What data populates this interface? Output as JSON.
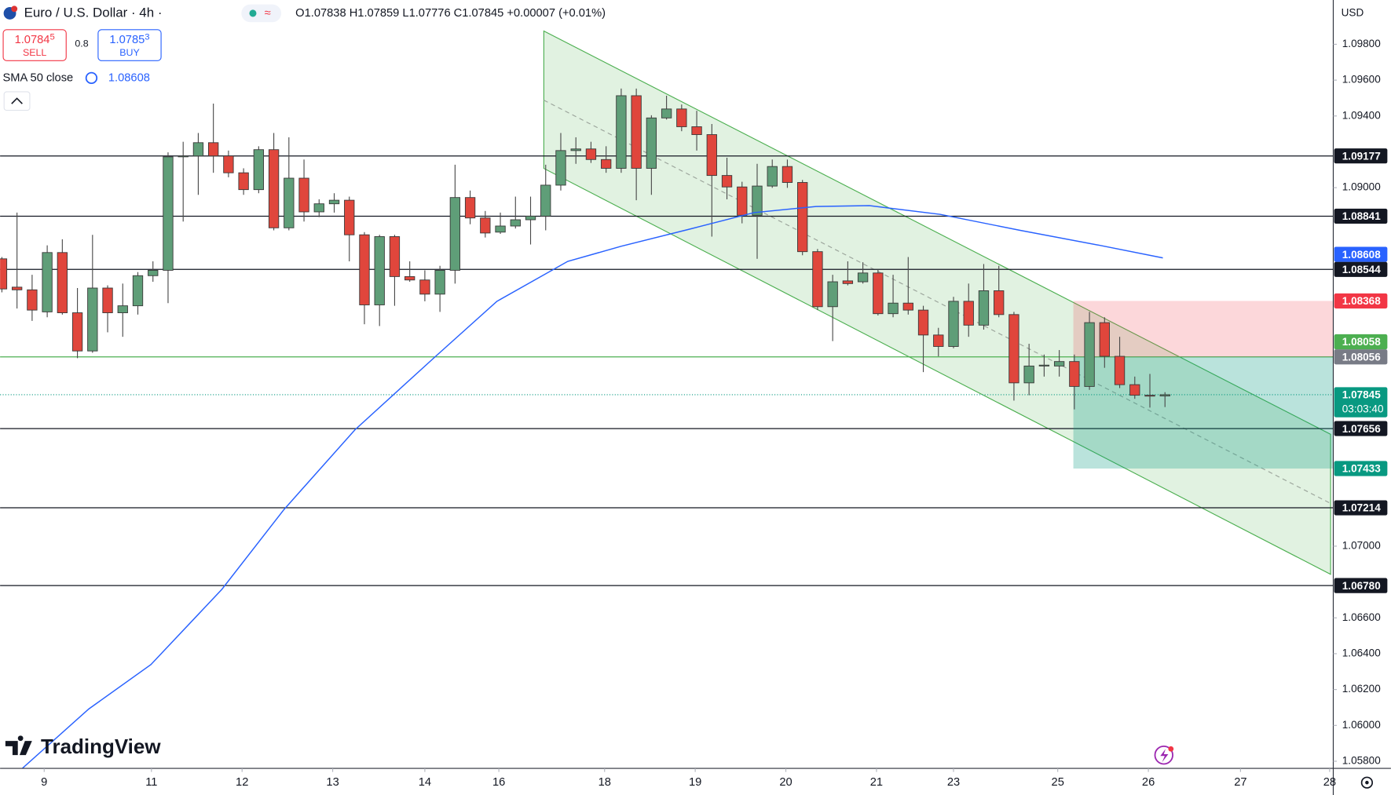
{
  "header": {
    "symbol": "Euro / U.S. Dollar · 4h ·",
    "ohlc": "O1.07838 H1.07859 L1.07776 C1.07845 +0.00007 (+0.01%)",
    "sell_price": "1.0784",
    "sell_pip": "5",
    "sell": "SELL",
    "spread": "0.8",
    "buy_price": "1.0785",
    "buy_pip": "3",
    "buy": "BUY",
    "indicator_value": "1.08608"
  },
  "logo": "TradingView",
  "chart_data": {
    "type": "candlestick",
    "currency": "USD",
    "up_color": "#5f9e78",
    "down_color": "#e0463c",
    "grid": false,
    "open": [
      1.08603,
      1.08445,
      1.0843,
      1.08307,
      1.08638,
      1.08302,
      1.08089,
      1.0844,
      1.08302,
      1.08341,
      1.08509,
      1.08539,
      1.09172,
      1.09177,
      1.09251,
      1.09177,
      1.09083,
      1.08989,
      1.09212,
      1.08776,
      1.09053,
      1.08865,
      1.0891,
      1.0893,
      1.08737,
      1.08346,
      1.08727,
      1.08504,
      1.08485,
      1.08406,
      1.08539,
      1.08945,
      1.08831,
      1.08752,
      1.08786,
      1.08821,
      1.08841,
      1.09014,
      1.09207,
      1.09216,
      1.09157,
      1.09108,
      1.09513,
      1.09108,
      1.09389,
      1.09439,
      1.0934,
      1.09296,
      1.09068,
      1.09004,
      1.08846,
      1.09009,
      1.09118,
      1.09029,
      1.08643,
      1.08336,
      1.0848,
      1.08475,
      1.08524,
      1.08297,
      1.08356,
      1.08317,
      1.08178,
      1.08114,
      1.08366,
      1.08233,
      1.08425,
      1.08292,
      1.07911,
      1.08005,
      1.08005,
      1.0803,
      1.07891,
      1.08247,
      1.08059,
      1.07901,
      1.07842,
      1.07838
    ],
    "high": [
      1.08613,
      1.08861,
      1.08514,
      1.08678,
      1.08712,
      1.0844,
      1.08737,
      1.08455,
      1.08465,
      1.08529,
      1.08589,
      1.09197,
      1.09256,
      1.09305,
      1.09469,
      1.09207,
      1.09108,
      1.09231,
      1.09305,
      1.09281,
      1.09157,
      1.08935,
      1.08969,
      1.0895,
      1.08752,
      1.08737,
      1.08737,
      1.08589,
      1.08539,
      1.08564,
      1.09128,
      1.08984,
      1.0887,
      1.08861,
      1.0895,
      1.0895,
      1.09128,
      1.09305,
      1.09281,
      1.09256,
      1.09231,
      1.09553,
      1.09553,
      1.09404,
      1.09513,
      1.09464,
      1.09429,
      1.09355,
      1.09167,
      1.09033,
      1.09133,
      1.09157,
      1.09157,
      1.09043,
      1.08658,
      1.08514,
      1.08589,
      1.08584,
      1.08544,
      1.08514,
      1.08613,
      1.08341,
      1.08218,
      1.08391,
      1.08465,
      1.08574,
      1.08564,
      1.08307,
      1.08129,
      1.08069,
      1.08094,
      1.08069,
      1.08307,
      1.08277,
      1.08168,
      1.07946,
      1.07961,
      1.07859
    ],
    "low": [
      1.08416,
      1.08326,
      1.08257,
      1.08277,
      1.08292,
      1.08049,
      1.08079,
      1.08193,
      1.08168,
      1.08292,
      1.08475,
      1.08356,
      1.08811,
      1.0896,
      1.09083,
      1.09058,
      1.0896,
      1.08969,
      1.08762,
      1.08762,
      1.08811,
      1.08836,
      1.08861,
      1.08589,
      1.08238,
      1.08228,
      1.08341,
      1.08475,
      1.08366,
      1.08307,
      1.08465,
      1.08796,
      1.08722,
      1.08742,
      1.08772,
      1.08683,
      1.08762,
      1.08984,
      1.09133,
      1.09138,
      1.09083,
      1.09083,
      1.0893,
      1.0896,
      1.0938,
      1.09315,
      1.09207,
      1.08727,
      1.08935,
      1.08801,
      1.08603,
      1.08999,
      1.08999,
      1.08623,
      1.08317,
      1.08144,
      1.08455,
      1.08465,
      1.08287,
      1.08277,
      1.08292,
      1.07971,
      1.08059,
      1.08104,
      1.08168,
      1.08208,
      1.08277,
      1.07812,
      1.07842,
      1.07946,
      1.07946,
      1.07763,
      1.07872,
      1.07995,
      1.07882,
      1.07822,
      1.07773,
      1.07776
    ],
    "close": [
      1.08435,
      1.0843,
      1.08317,
      1.08638,
      1.08302,
      1.08089,
      1.0844,
      1.08302,
      1.08341,
      1.08509,
      1.08539,
      1.09172,
      1.09177,
      1.09251,
      1.09177,
      1.09083,
      1.08989,
      1.09212,
      1.08776,
      1.09053,
      1.08865,
      1.0891,
      1.0893,
      1.08737,
      1.08346,
      1.08727,
      1.08504,
      1.08485,
      1.08406,
      1.08539,
      1.08945,
      1.08831,
      1.08747,
      1.08786,
      1.08821,
      1.08841,
      1.09014,
      1.09207,
      1.09216,
      1.09157,
      1.09108,
      1.09513,
      1.09108,
      1.09389,
      1.09439,
      1.0934,
      1.09296,
      1.09068,
      1.09004,
      1.08846,
      1.09009,
      1.09118,
      1.09029,
      1.08643,
      1.08336,
      1.08475,
      1.08465,
      1.08524,
      1.08297,
      1.08356,
      1.08317,
      1.08178,
      1.08114,
      1.08366,
      1.08233,
      1.08425,
      1.08292,
      1.07911,
      1.08005,
      1.0801,
      1.0803,
      1.07891,
      1.08247,
      1.08059,
      1.07901,
      1.07842,
      1.07837,
      1.07845
    ],
    "ylim": [
      1.0576,
      1.10047
    ],
    "yticks": [
      {
        "value": 1.098,
        "label": "1.09800"
      },
      {
        "value": 1.096,
        "label": "1.09600"
      },
      {
        "value": 1.094,
        "label": "1.09400"
      },
      {
        "value": 1.09,
        "label": "1.09000"
      },
      {
        "value": 1.07,
        "label": "1.07000"
      },
      {
        "value": 1.066,
        "label": "1.06600"
      },
      {
        "value": 1.064,
        "label": "1.06400"
      },
      {
        "value": 1.062,
        "label": "1.06200"
      },
      {
        "value": 1.06,
        "label": "1.06000"
      },
      {
        "value": 1.058,
        "label": "1.05800"
      }
    ],
    "xlim": [
      -0.12,
      88.14
    ],
    "xticks": [
      {
        "value": 2.8,
        "label": "9"
      },
      {
        "value": 9.9,
        "label": "11"
      },
      {
        "value": 15.9,
        "label": "12"
      },
      {
        "value": 21.9,
        "label": "13"
      },
      {
        "value": 28,
        "label": "14"
      },
      {
        "value": 32.9,
        "label": "16"
      },
      {
        "value": 39.9,
        "label": "18"
      },
      {
        "value": 45.9,
        "label": "19"
      },
      {
        "value": 51.9,
        "label": "20"
      },
      {
        "value": 57.9,
        "label": "21"
      },
      {
        "value": 63,
        "label": "23"
      },
      {
        "value": 69.9,
        "label": "25"
      },
      {
        "value": 75.9,
        "label": "26"
      },
      {
        "value": 82,
        "label": "27"
      },
      {
        "value": 87.9,
        "label": "28"
      }
    ],
    "sma": {
      "name": "SMA 50 close",
      "color": "#2962ff",
      "x": [
        1.35,
        5.75,
        9.86,
        14.56,
        18.67,
        23.37,
        28.66,
        32.77,
        37.46,
        40.99,
        45.68,
        49.79,
        53.9,
        57.43,
        62.13,
        67.41,
        72.7,
        76.86
      ],
      "values": [
        1.0576,
        1.06092,
        1.06339,
        1.06759,
        1.07204,
        1.07649,
        1.08055,
        1.08366,
        1.08589,
        1.08673,
        1.08772,
        1.08861,
        1.08895,
        1.089,
        1.08851,
        1.08762,
        1.08678,
        1.08608
      ]
    },
    "price_labels": [
      {
        "value": 1.09177,
        "color": "#131722",
        "line": "#131722"
      },
      {
        "value": 1.08841,
        "color": "#131722",
        "line": "#131722"
      },
      {
        "value": 1.08608,
        "color": "#2962ff"
      },
      {
        "value": 1.08544,
        "color": "#131722",
        "line": "#131722"
      },
      {
        "value": 1.08368,
        "color": "#f23645"
      },
      {
        "value": 1.08058,
        "color": "#4caf50"
      },
      {
        "value": 1.08056,
        "color": "#787b86",
        "line": "#4caf50"
      },
      {
        "value": 1.07845,
        "color": "#089981",
        "line": "#089981",
        "dotted": true,
        "countdown": "03:03:40"
      },
      {
        "value": 1.07656,
        "color": "#131722",
        "line": "#131722"
      },
      {
        "value": 1.07433,
        "color": "#089981"
      },
      {
        "value": 1.07214,
        "color": "#131722",
        "line": "#131722"
      },
      {
        "value": 1.0678,
        "label": "1.06780",
        "color": "#131722",
        "line": "#131722"
      }
    ]
  }
}
